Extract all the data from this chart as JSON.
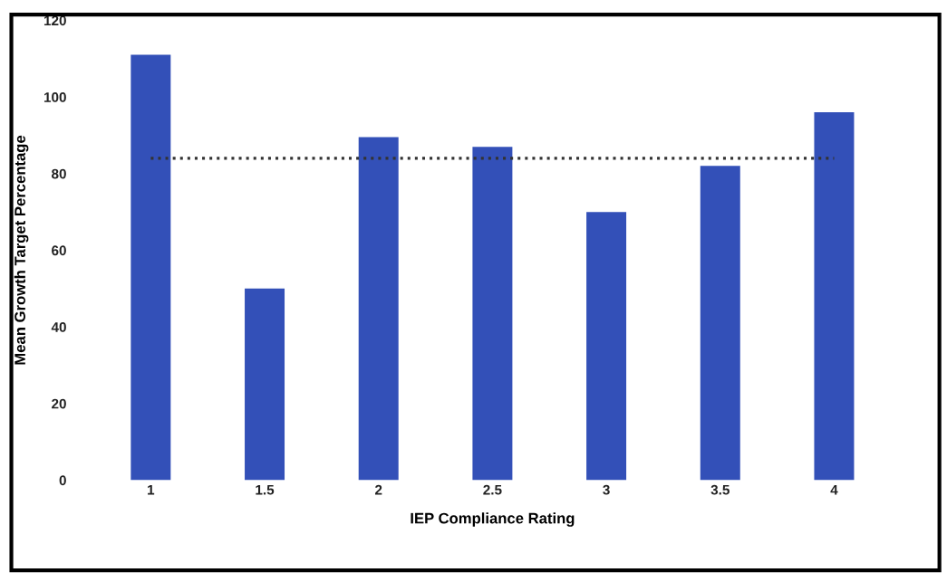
{
  "chart_data": {
    "type": "bar",
    "xlabel": "IEP Compliance Rating",
    "ylabel": "Mean Growth Target Percentage",
    "categories": [
      "1",
      "1.5",
      "2",
      "2.5",
      "3",
      "3.5",
      "4"
    ],
    "values": [
      111,
      50,
      89.5,
      87,
      70,
      82,
      96
    ],
    "color": "#3350b8",
    "ylim": [
      0,
      120
    ],
    "yticks": [
      0,
      20,
      40,
      60,
      80,
      100,
      120
    ],
    "grid": false,
    "ref_lines": [
      {
        "axis": "y",
        "value": 84,
        "label": null,
        "color": "#333333",
        "line_style": "dotted"
      }
    ]
  }
}
